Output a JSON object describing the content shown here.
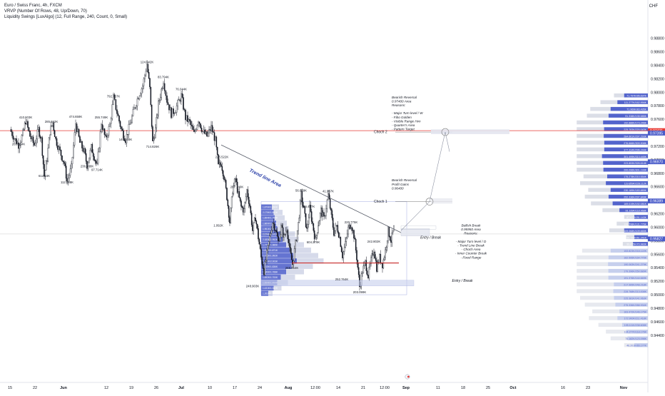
{
  "header": {
    "title": "Euro / Swiss Franc, 4h, FXCM",
    "indicator_1": "VRVP (Number Of Rows, 48, Up/Down, 70)",
    "indicator_2": "Liquidity Swings [LuxAlgo] (12, Full Range, 240, Count, 0, Small)"
  },
  "currency": "CHF",
  "chart_data": {
    "type": "candlestick",
    "instrument": "Euro / Swiss Franc",
    "timeframe": "4h",
    "ylim": [
      0.937,
      0.9905
    ],
    "y_ticks": [
      "0.98800",
      "0.98600",
      "0.98400",
      "0.98200",
      "0.98000",
      "0.97800",
      "0.97600",
      "0.97400",
      "0.97200",
      "0.97000",
      "0.96800",
      "0.96600",
      "0.96400",
      "0.96200",
      "0.96000",
      "0.95800",
      "0.95600",
      "0.95400",
      "0.95200",
      "0.95000",
      "0.94800",
      "0.94600",
      "0.94400"
    ],
    "x_ticks": [
      {
        "label": "15",
        "i": 0
      },
      {
        "label": "22",
        "i": 35
      },
      {
        "label": "Jun",
        "i": 75
      },
      {
        "label": "12",
        "i": 135
      },
      {
        "label": "19",
        "i": 170
      },
      {
        "label": "26",
        "i": 205
      },
      {
        "label": "Jul",
        "i": 240
      },
      {
        "label": "10",
        "i": 280
      },
      {
        "label": "17",
        "i": 315
      },
      {
        "label": "24",
        "i": 350
      },
      {
        "label": "Aug",
        "i": 390
      },
      {
        "label": "12:00",
        "i": 428
      },
      {
        "label": "14",
        "i": 460
      },
      {
        "label": "21",
        "i": 495
      },
      {
        "label": "12:00",
        "i": 525
      },
      {
        "label": "Sep",
        "i": 555
      },
      {
        "label": "11",
        "i": 600
      },
      {
        "label": "18",
        "i": 635
      },
      {
        "label": "25",
        "i": 670
      },
      {
        "label": "Oct",
        "i": 705
      },
      {
        "label": "16",
        "i": 775
      },
      {
        "label": "23",
        "i": 810
      },
      {
        "label": "Nov",
        "i": 860
      }
    ],
    "price_levels": [
      {
        "label": "0.97431",
        "value": 0.97431,
        "color": "#e53935"
      },
      {
        "label": "0.97395",
        "value": 0.97395,
        "color": "#4a5cc9"
      },
      {
        "label": "0.96970",
        "value": 0.9697,
        "color": "#4a5cc9"
      },
      {
        "label": "0.96389",
        "value": 0.96389,
        "color": "#4a5cc9"
      },
      {
        "label": "0.95827",
        "value": 0.95827,
        "color": "#4a5cc9"
      }
    ],
    "red_line": 0.97431,
    "swing_labels": [
      {
        "text": "410.603K",
        "i": 22,
        "v": 0.9761
      },
      {
        "text": "265.164K",
        "i": 12,
        "v": 0.97215
      },
      {
        "text": "612.54K",
        "i": 48,
        "v": 0.96745
      },
      {
        "text": "285.662K",
        "i": 58,
        "v": 0.9755
      },
      {
        "text": "112.088K",
        "i": 80,
        "v": 0.9665
      },
      {
        "text": "474.658K",
        "i": 92,
        "v": 0.9762
      },
      {
        "text": "236.488K",
        "i": 108,
        "v": 0.9689
      },
      {
        "text": "97.714K",
        "i": 122,
        "v": 0.96835
      },
      {
        "text": "255.749K",
        "i": 128,
        "v": 0.9761
      },
      {
        "text": "792.767K",
        "i": 145,
        "v": 0.97925
      },
      {
        "text": "146.168K",
        "i": 162,
        "v": 0.97285
      },
      {
        "text": "124.042K",
        "i": 192,
        "v": 0.9843
      },
      {
        "text": "714.826K",
        "i": 200,
        "v": 0.9718
      },
      {
        "text": "83.794K",
        "i": 215,
        "v": 0.9821
      },
      {
        "text": "76.044K",
        "i": 240,
        "v": 0.9803
      },
      {
        "text": "225.522K",
        "i": 297,
        "v": 0.97025
      },
      {
        "text": "287.149K",
        "i": 318,
        "v": 0.9658
      },
      {
        "text": "1.092K",
        "i": 292,
        "v": 0.9601
      },
      {
        "text": "56.669K",
        "i": 408,
        "v": 0.9653
      },
      {
        "text": "41.957K",
        "i": 446,
        "v": 0.9652
      },
      {
        "text": "406.487K",
        "i": 418,
        "v": 0.9629
      },
      {
        "text": "604.279K",
        "i": 425,
        "v": 0.9576
      },
      {
        "text": "220.775K",
        "i": 478,
        "v": 0.9606
      },
      {
        "text": "242.802K",
        "i": 510,
        "v": 0.9577
      },
      {
        "text": "268.854K",
        "i": 395,
        "v": 0.9538
      },
      {
        "text": "252.764K",
        "i": 465,
        "v": 0.9521
      },
      {
        "text": "203.099K",
        "i": 490,
        "v": 0.9502
      },
      {
        "text": "248.903K",
        "i": 340,
        "v": 0.9511
      }
    ],
    "annotations": {
      "bearish_1": [
        "Bearish Reversal",
        "0.97400 Area",
        "Reasons:",
        "",
        "- Major Turn level / W",
        "- Fibo Golden",
        "- Visible Range Hvn",
        "- Quarter's Area",
        "- Pattern Target"
      ],
      "bearish_2": [
        "Bearish Reversal",
        "Profit Gains",
        "0.96400"
      ],
      "bullish": [
        "Bullish Break",
        "0.95950 Area",
        "Reasons:",
        "",
        "- Major Turn level / D",
        "- Trend Line Break",
        "- Choch Area",
        "- Inner Counter Break",
        "- Fixed Range"
      ],
      "choch_1": "Choch 1",
      "choch_2": "Choch 2",
      "entry_break_1": "Entry / Break",
      "entry_break_2": "Entry / Break",
      "trend_line_area": "Trend line Area"
    },
    "vrvp_right_rows": [
      {
        "v": 0.9795,
        "up": 0.15,
        "down": 0.35,
        "label": "71.797K/95.697K"
      },
      {
        "v": 0.9785,
        "up": 0.25,
        "down": 0.45,
        "label": "111.277K/162.994K"
      },
      {
        "v": 0.9775,
        "up": 0.3,
        "down": 0.55,
        "label": "71.969K/83.495K"
      },
      {
        "v": 0.9765,
        "up": 0.32,
        "down": 0.58,
        "label": "91.338K/135.585K"
      },
      {
        "v": 0.9755,
        "up": 0.4,
        "down": 0.68,
        "label": "192.886K/173.246K"
      },
      {
        "v": 0.9745,
        "up": 0.45,
        "down": 0.72,
        "label": "225.783K/220.043K"
      },
      {
        "v": 0.9735,
        "up": 0.55,
        "down": 0.9,
        "label": "284.661K/297.293K"
      },
      {
        "v": 0.9725,
        "up": 0.6,
        "down": 0.95,
        "label": "276.666K/309.908K"
      },
      {
        "v": 0.9715,
        "up": 0.58,
        "down": 0.92,
        "label": "377.334K/296.244K"
      },
      {
        "v": 0.9705,
        "up": 0.55,
        "down": 1.0,
        "label": "301.499K/313.445K"
      },
      {
        "v": 0.9695,
        "up": 0.5,
        "down": 0.85,
        "label": "223.853K/326.614K"
      },
      {
        "v": 0.9685,
        "up": 0.42,
        "down": 0.7,
        "label": "200.096K/301.193K"
      },
      {
        "v": 0.9675,
        "up": 0.35,
        "down": 0.6,
        "label": "175.278K/210.554K"
      },
      {
        "v": 0.9665,
        "up": 0.38,
        "down": 0.62,
        "label": "119.859K/228.112K"
      },
      {
        "v": 0.9655,
        "up": 0.33,
        "down": 0.55,
        "label": "230.189K/183.889K"
      },
      {
        "v": 0.9645,
        "up": 0.35,
        "down": 0.58,
        "label": "252.336K/297.849K"
      },
      {
        "v": 0.9635,
        "up": 0.32,
        "down": 0.52,
        "label": "169.019K/192.081K"
      },
      {
        "v": 0.9625,
        "up": 0.25,
        "down": 0.42,
        "label": "91.169K/118.968K"
      },
      {
        "v": 0.9615,
        "up": 0.15,
        "down": 0.2,
        "label": "87.677K/91.143K"
      },
      {
        "v": 0.9605,
        "up": 0.18,
        "down": 0.28,
        "label": "120.798K/131.776K"
      },
      {
        "v": 0.9595,
        "up": 0.22,
        "down": 0.35,
        "label": "109.068K/109.665K"
      },
      {
        "v": 0.9585,
        "up": 0.12,
        "down": 0.2,
        "label": "59.744K/61.241K"
      },
      {
        "v": 0.9575,
        "up": 0.15,
        "down": 0.22,
        "label": "99.475K/70.983K"
      },
      {
        "v": 0.9565,
        "up": 0.42,
        "down": 0.55,
        "label": "153.823K/218.122K"
      },
      {
        "v": 0.9555,
        "up": 0.5,
        "down": 0.62,
        "label": "162.595K/164.770K"
      },
      {
        "v": 0.9545,
        "up": 0.55,
        "down": 0.7,
        "label": "190.063K/241.279K"
      },
      {
        "v": 0.9535,
        "up": 0.52,
        "down": 0.65,
        "label": "179.396K/250.689K"
      },
      {
        "v": 0.9525,
        "up": 0.48,
        "down": 0.6,
        "label": "191.376K/144.669K"
      },
      {
        "v": 0.9515,
        "up": 0.6,
        "down": 0.55,
        "label": "217.965K/248.218K"
      },
      {
        "v": 0.9505,
        "up": 0.55,
        "down": 0.52,
        "label": "228.768K/213.008K"
      },
      {
        "v": 0.9495,
        "up": 0.5,
        "down": 0.5,
        "label": "225.381K/141.063K"
      },
      {
        "v": 0.9485,
        "up": 0.45,
        "down": 0.48,
        "label": "275.336K/288.934K"
      },
      {
        "v": 0.9475,
        "up": 0.4,
        "down": 0.42,
        "label": "163.972K/146.175K"
      },
      {
        "v": 0.9465,
        "up": 0.42,
        "down": 0.45,
        "label": "172.900K/211.418K"
      },
      {
        "v": 0.9455,
        "up": 0.35,
        "down": 0.38,
        "label": "195.111K/238.608K"
      },
      {
        "v": 0.9445,
        "up": 0.3,
        "down": 0.32,
        "label": "124.277K/118.176K"
      },
      {
        "v": 0.9435,
        "up": 0.25,
        "down": 0.3,
        "label": "75.182K/123.098K"
      },
      {
        "v": 0.9425,
        "up": 0.15,
        "down": 0.2,
        "label": "46.201K/65.177K"
      }
    ],
    "vrvp_left_rows": [
      {
        "v": 0.963,
        "up": 0.3,
        "down": 0.2
      },
      {
        "v": 0.9622,
        "up": 0.35,
        "down": 0.25
      },
      {
        "v": 0.9614,
        "up": 0.38,
        "down": 0.28
      },
      {
        "v": 0.9606,
        "up": 0.42,
        "down": 0.3
      },
      {
        "v": 0.9598,
        "up": 0.45,
        "down": 0.32
      },
      {
        "v": 0.959,
        "up": 0.55,
        "down": 0.4
      },
      {
        "v": 0.9582,
        "up": 0.6,
        "down": 0.45
      },
      {
        "v": 0.9574,
        "up": 0.7,
        "down": 0.5
      },
      {
        "v": 0.9566,
        "up": 0.8,
        "down": 0.6
      },
      {
        "v": 0.9558,
        "up": 0.9,
        "down": 0.7
      },
      {
        "v": 0.955,
        "up": 1.0,
        "down": 0.75
      },
      {
        "v": 0.9542,
        "up": 0.85,
        "down": 0.6
      },
      {
        "v": 0.9534,
        "up": 0.7,
        "down": 0.5
      },
      {
        "v": 0.9526,
        "up": 0.55,
        "down": 0.4
      },
      {
        "v": 0.9518,
        "up": 0.45,
        "down": 0.3
      },
      {
        "v": 0.951,
        "up": 0.35,
        "down": 0.22
      },
      {
        "v": 0.9502,
        "up": 0.2,
        "down": 0.12
      }
    ],
    "vrvp_left_labels": [
      "1.870K/1.890K",
      "2.175K/1.861K",
      "1.894K/1.754K",
      "1.860K/2.167K",
      "1.961K/2.012K",
      "2.074K/2.141K",
      "2.183K/1.952K",
      "1.776K/1.985K",
      "1.813K/1.871K",
      "2.071K/1.992K",
      "1.792K/2.003K",
      "1.915K/1.836K",
      "1.840K/1.768K",
      "1.692K/1.700K",
      "1.554K/1.494K",
      "1.431K/1.382K",
      "1.202K/1.110K"
    ],
    "price_path": [
      [
        0,
        0.9745
      ],
      [
        6,
        0.9732
      ],
      [
        12,
        0.9722
      ],
      [
        18,
        0.9738
      ],
      [
        22,
        0.9758
      ],
      [
        28,
        0.9735
      ],
      [
        34,
        0.9722
      ],
      [
        40,
        0.9745
      ],
      [
        44,
        0.973
      ],
      [
        48,
        0.9676
      ],
      [
        52,
        0.9702
      ],
      [
        56,
        0.9742
      ],
      [
        60,
        0.9755
      ],
      [
        64,
        0.973
      ],
      [
        70,
        0.9712
      ],
      [
        76,
        0.9695
      ],
      [
        80,
        0.9668
      ],
      [
        86,
        0.9688
      ],
      [
        92,
        0.9754
      ],
      [
        98,
        0.9725
      ],
      [
        104,
        0.9712
      ],
      [
        108,
        0.9692
      ],
      [
        114,
        0.9718
      ],
      [
        118,
        0.9705
      ],
      [
        122,
        0.969
      ],
      [
        128,
        0.9755
      ],
      [
        134,
        0.973
      ],
      [
        140,
        0.9752
      ],
      [
        145,
        0.9792
      ],
      [
        150,
        0.977
      ],
      [
        156,
        0.9745
      ],
      [
        162,
        0.973
      ],
      [
        168,
        0.9752
      ],
      [
        174,
        0.9775
      ],
      [
        180,
        0.9795
      ],
      [
        186,
        0.981
      ],
      [
        192,
        0.9842
      ],
      [
        196,
        0.9805
      ],
      [
        200,
        0.9725
      ],
      [
        204,
        0.9745
      ],
      [
        208,
        0.9782
      ],
      [
        215,
        0.9818
      ],
      [
        220,
        0.9788
      ],
      [
        226,
        0.9768
      ],
      [
        232,
        0.9775
      ],
      [
        240,
        0.9795
      ],
      [
        246,
        0.9762
      ],
      [
        252,
        0.9755
      ],
      [
        258,
        0.9738
      ],
      [
        264,
        0.976
      ],
      [
        270,
        0.9742
      ],
      [
        276,
        0.9735
      ],
      [
        282,
        0.9748
      ],
      [
        288,
        0.9728
      ],
      [
        292,
        0.969
      ],
      [
        296,
        0.9695
      ],
      [
        300,
        0.9675
      ],
      [
        304,
        0.9645
      ],
      [
        308,
        0.9608
      ],
      [
        312,
        0.9655
      ],
      [
        316,
        0.9672
      ],
      [
        320,
        0.9648
      ],
      [
        324,
        0.963
      ],
      [
        328,
        0.9625
      ],
      [
        332,
        0.9655
      ],
      [
        336,
        0.9632
      ],
      [
        340,
        0.9595
      ],
      [
        344,
        0.9615
      ],
      [
        348,
        0.9585
      ],
      [
        352,
        0.9555
      ],
      [
        356,
        0.9535
      ],
      [
        360,
        0.956
      ],
      [
        364,
        0.9585
      ],
      [
        368,
        0.9608
      ],
      [
        372,
        0.9598
      ],
      [
        376,
        0.9578
      ],
      [
        380,
        0.96
      ],
      [
        384,
        0.9585
      ],
      [
        388,
        0.96
      ],
      [
        392,
        0.9565
      ],
      [
        396,
        0.9545
      ],
      [
        400,
        0.9575
      ],
      [
        404,
        0.9605
      ],
      [
        408,
        0.9648
      ],
      [
        412,
        0.9625
      ],
      [
        416,
        0.9595
      ],
      [
        420,
        0.9628
      ],
      [
        424,
        0.9605
      ],
      [
        428,
        0.958
      ],
      [
        432,
        0.9605
      ],
      [
        436,
        0.9625
      ],
      [
        440,
        0.9612
      ],
      [
        446,
        0.9648
      ],
      [
        450,
        0.962
      ],
      [
        454,
        0.9592
      ],
      [
        458,
        0.9602
      ],
      [
        462,
        0.9585
      ],
      [
        466,
        0.9558
      ],
      [
        470,
        0.9575
      ],
      [
        474,
        0.9598
      ],
      [
        478,
        0.9605
      ],
      [
        482,
        0.9588
      ],
      [
        486,
        0.9555
      ],
      [
        490,
        0.9512
      ],
      [
        494,
        0.9535
      ],
      [
        498,
        0.9548
      ],
      [
        502,
        0.9528
      ],
      [
        506,
        0.955
      ],
      [
        510,
        0.9568
      ],
      [
        514,
        0.954
      ],
      [
        518,
        0.9555
      ],
      [
        522,
        0.9545
      ],
      [
        526,
        0.9565
      ],
      [
        530,
        0.9595
      ],
      [
        534,
        0.958
      ],
      [
        538,
        0.9598
      ]
    ]
  }
}
